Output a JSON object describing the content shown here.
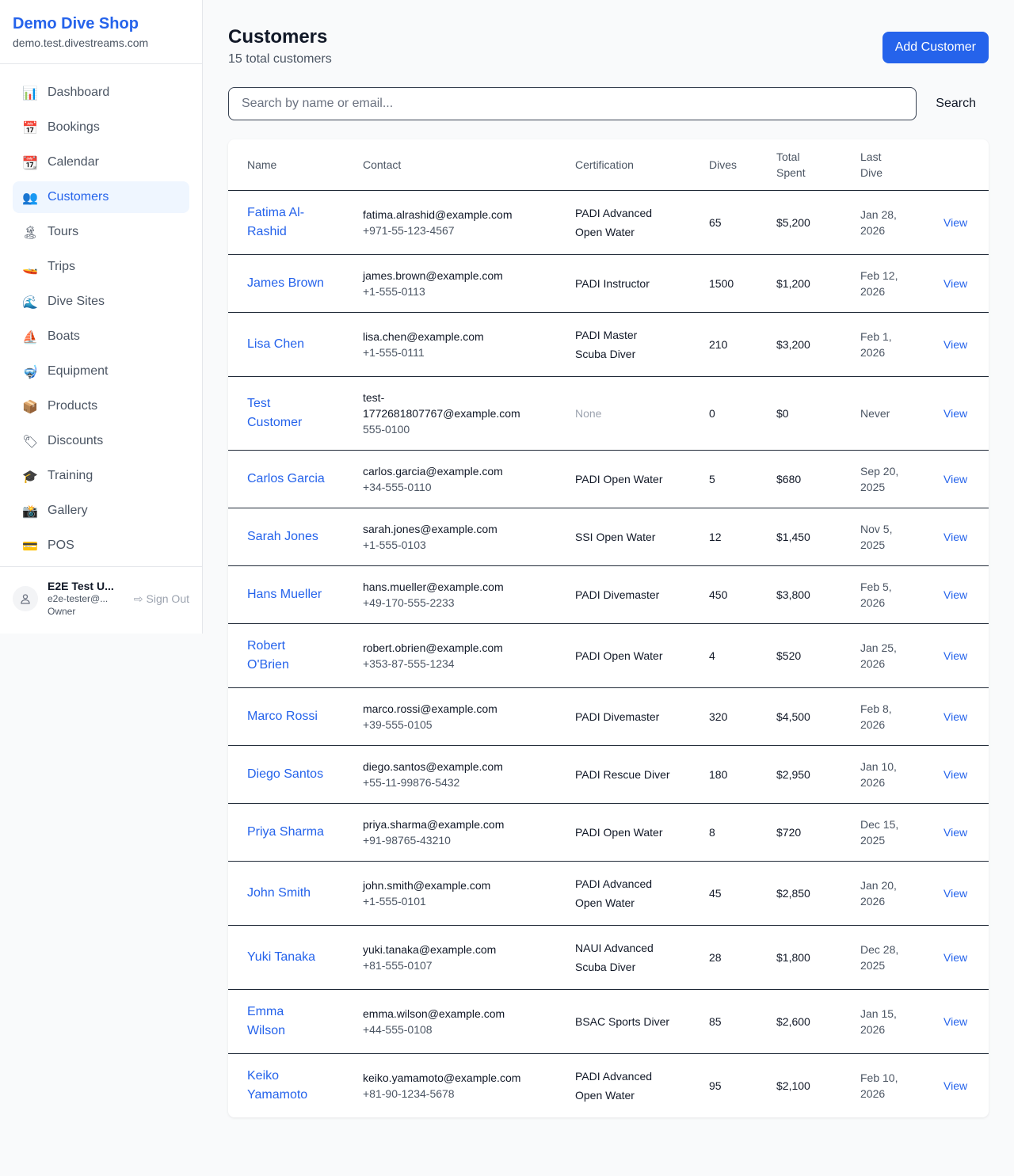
{
  "brand": {
    "title": "Demo Dive Shop",
    "subdomain": "demo.test.divestreams.com"
  },
  "nav": [
    {
      "label": "Dashboard",
      "icon": "📊"
    },
    {
      "label": "Bookings",
      "icon": "📅"
    },
    {
      "label": "Calendar",
      "icon": "📆"
    },
    {
      "label": "Customers",
      "icon": "👥",
      "active": true
    },
    {
      "label": "Tours",
      "icon": "🏝"
    },
    {
      "label": "Trips",
      "icon": "🚤"
    },
    {
      "label": "Dive Sites",
      "icon": "🌊"
    },
    {
      "label": "Boats",
      "icon": "⛵"
    },
    {
      "label": "Equipment",
      "icon": "🤿"
    },
    {
      "label": "Products",
      "icon": "📦"
    },
    {
      "label": "Discounts",
      "icon": "🏷"
    },
    {
      "label": "Training",
      "icon": "🎓"
    },
    {
      "label": "Gallery",
      "icon": "📸"
    },
    {
      "label": "POS",
      "icon": "💳"
    }
  ],
  "user": {
    "name": "E2E Test U...",
    "email": "e2e-tester@...",
    "role": "Owner",
    "sign_out": "Sign Out"
  },
  "header": {
    "title": "Customers",
    "subtitle": "15 total customers",
    "add_button": "Add Customer"
  },
  "search": {
    "placeholder": "Search by name or email...",
    "value": "",
    "button": "Search"
  },
  "table": {
    "columns": [
      "Name",
      "Contact",
      "Certification",
      "Dives",
      "Total Spent",
      "Last Dive",
      ""
    ],
    "view_label": "View",
    "rows": [
      {
        "name": "Fatima Al-Rashid",
        "email": "fatima.alrashid@example.com",
        "phone": "+971-55-123-4567",
        "cert": "PADI Advanced Open Water",
        "dives": "65",
        "spent": "$5,200",
        "last": "Jan 28, 2026"
      },
      {
        "name": "James Brown",
        "email": "james.brown@example.com",
        "phone": "+1-555-0113",
        "cert": "PADI Instructor",
        "dives": "1500",
        "spent": "$1,200",
        "last": "Feb 12, 2026"
      },
      {
        "name": "Lisa Chen",
        "email": "lisa.chen@example.com",
        "phone": "+1-555-0111",
        "cert": "PADI Master Scuba Diver",
        "dives": "210",
        "spent": "$3,200",
        "last": "Feb 1, 2026"
      },
      {
        "name": "Test Customer",
        "email": "test-1772681807767@example.com",
        "phone": "555-0100",
        "cert": "None",
        "dives": "0",
        "spent": "$0",
        "last": "Never"
      },
      {
        "name": "Carlos Garcia",
        "email": "carlos.garcia@example.com",
        "phone": "+34-555-0110",
        "cert": "PADI Open Water",
        "dives": "5",
        "spent": "$680",
        "last": "Sep 20, 2025"
      },
      {
        "name": "Sarah Jones",
        "email": "sarah.jones@example.com",
        "phone": "+1-555-0103",
        "cert": "SSI Open Water",
        "dives": "12",
        "spent": "$1,450",
        "last": "Nov 5, 2025"
      },
      {
        "name": "Hans Mueller",
        "email": "hans.mueller@example.com",
        "phone": "+49-170-555-2233",
        "cert": "PADI Divemaster",
        "dives": "450",
        "spent": "$3,800",
        "last": "Feb 5, 2026"
      },
      {
        "name": "Robert O'Brien",
        "email": "robert.obrien@example.com",
        "phone": "+353-87-555-1234",
        "cert": "PADI Open Water",
        "dives": "4",
        "spent": "$520",
        "last": "Jan 25, 2026"
      },
      {
        "name": "Marco Rossi",
        "email": "marco.rossi@example.com",
        "phone": "+39-555-0105",
        "cert": "PADI Divemaster",
        "dives": "320",
        "spent": "$4,500",
        "last": "Feb 8, 2026"
      },
      {
        "name": "Diego Santos",
        "email": "diego.santos@example.com",
        "phone": "+55-11-99876-5432",
        "cert": "PADI Rescue Diver",
        "dives": "180",
        "spent": "$2,950",
        "last": "Jan 10, 2026"
      },
      {
        "name": "Priya Sharma",
        "email": "priya.sharma@example.com",
        "phone": "+91-98765-43210",
        "cert": "PADI Open Water",
        "dives": "8",
        "spent": "$720",
        "last": "Dec 15, 2025"
      },
      {
        "name": "John Smith",
        "email": "john.smith@example.com",
        "phone": "+1-555-0101",
        "cert": "PADI Advanced Open Water",
        "dives": "45",
        "spent": "$2,850",
        "last": "Jan 20, 2026"
      },
      {
        "name": "Yuki Tanaka",
        "email": "yuki.tanaka@example.com",
        "phone": "+81-555-0107",
        "cert": "NAUI Advanced Scuba Diver",
        "dives": "28",
        "spent": "$1,800",
        "last": "Dec 28, 2025"
      },
      {
        "name": "Emma Wilson",
        "email": "emma.wilson@example.com",
        "phone": "+44-555-0108",
        "cert": "BSAC Sports Diver",
        "dives": "85",
        "spent": "$2,600",
        "last": "Jan 15, 2026"
      },
      {
        "name": "Keiko Yamamoto",
        "email": "keiko.yamamoto@example.com",
        "phone": "+81-90-1234-5678",
        "cert": "PADI Advanced Open Water",
        "dives": "95",
        "spent": "$2,100",
        "last": "Feb 10, 2026"
      }
    ]
  }
}
